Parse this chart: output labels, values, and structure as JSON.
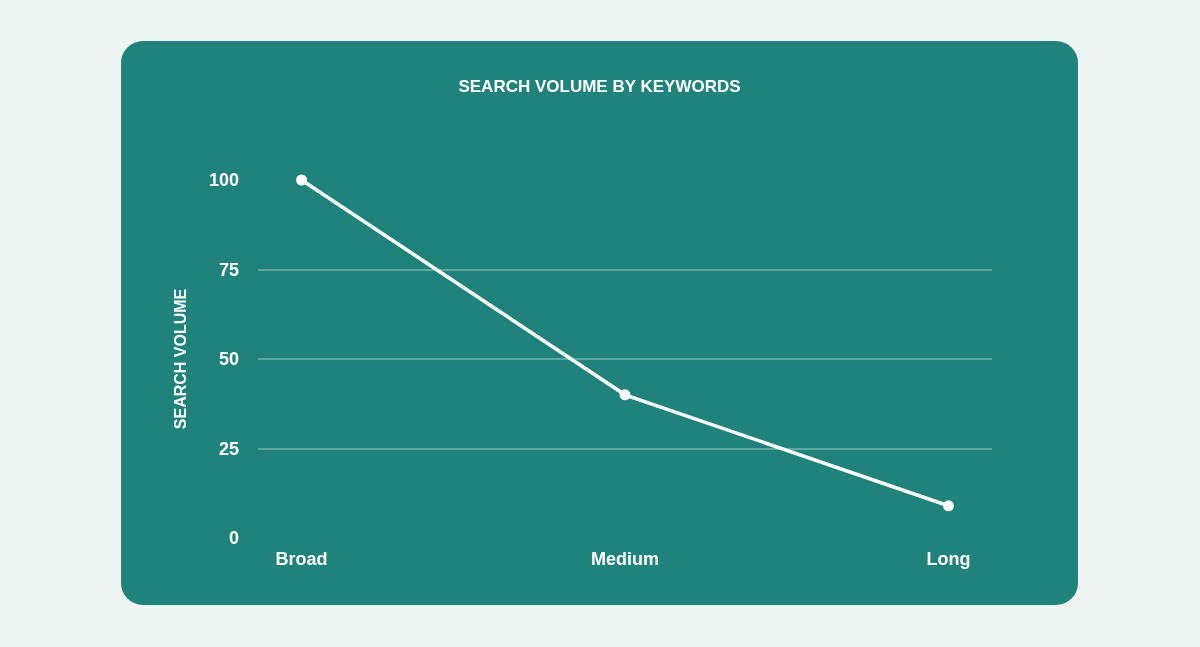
{
  "chart_data": {
    "type": "line",
    "title": "SEARCH VOLUME BY KEYWORDS",
    "ylabel": "SEARCH VOLUME",
    "categories": [
      "Broad",
      "Medium",
      "Long"
    ],
    "series": [
      {
        "color": "#ffffff",
        "values": [
          100,
          40,
          9
        ]
      }
    ],
    "ylim": [
      0,
      100
    ],
    "yticks": [
      0,
      25,
      50,
      75,
      100
    ],
    "grid": "y",
    "marker": "circle",
    "line_style": "solid"
  }
}
